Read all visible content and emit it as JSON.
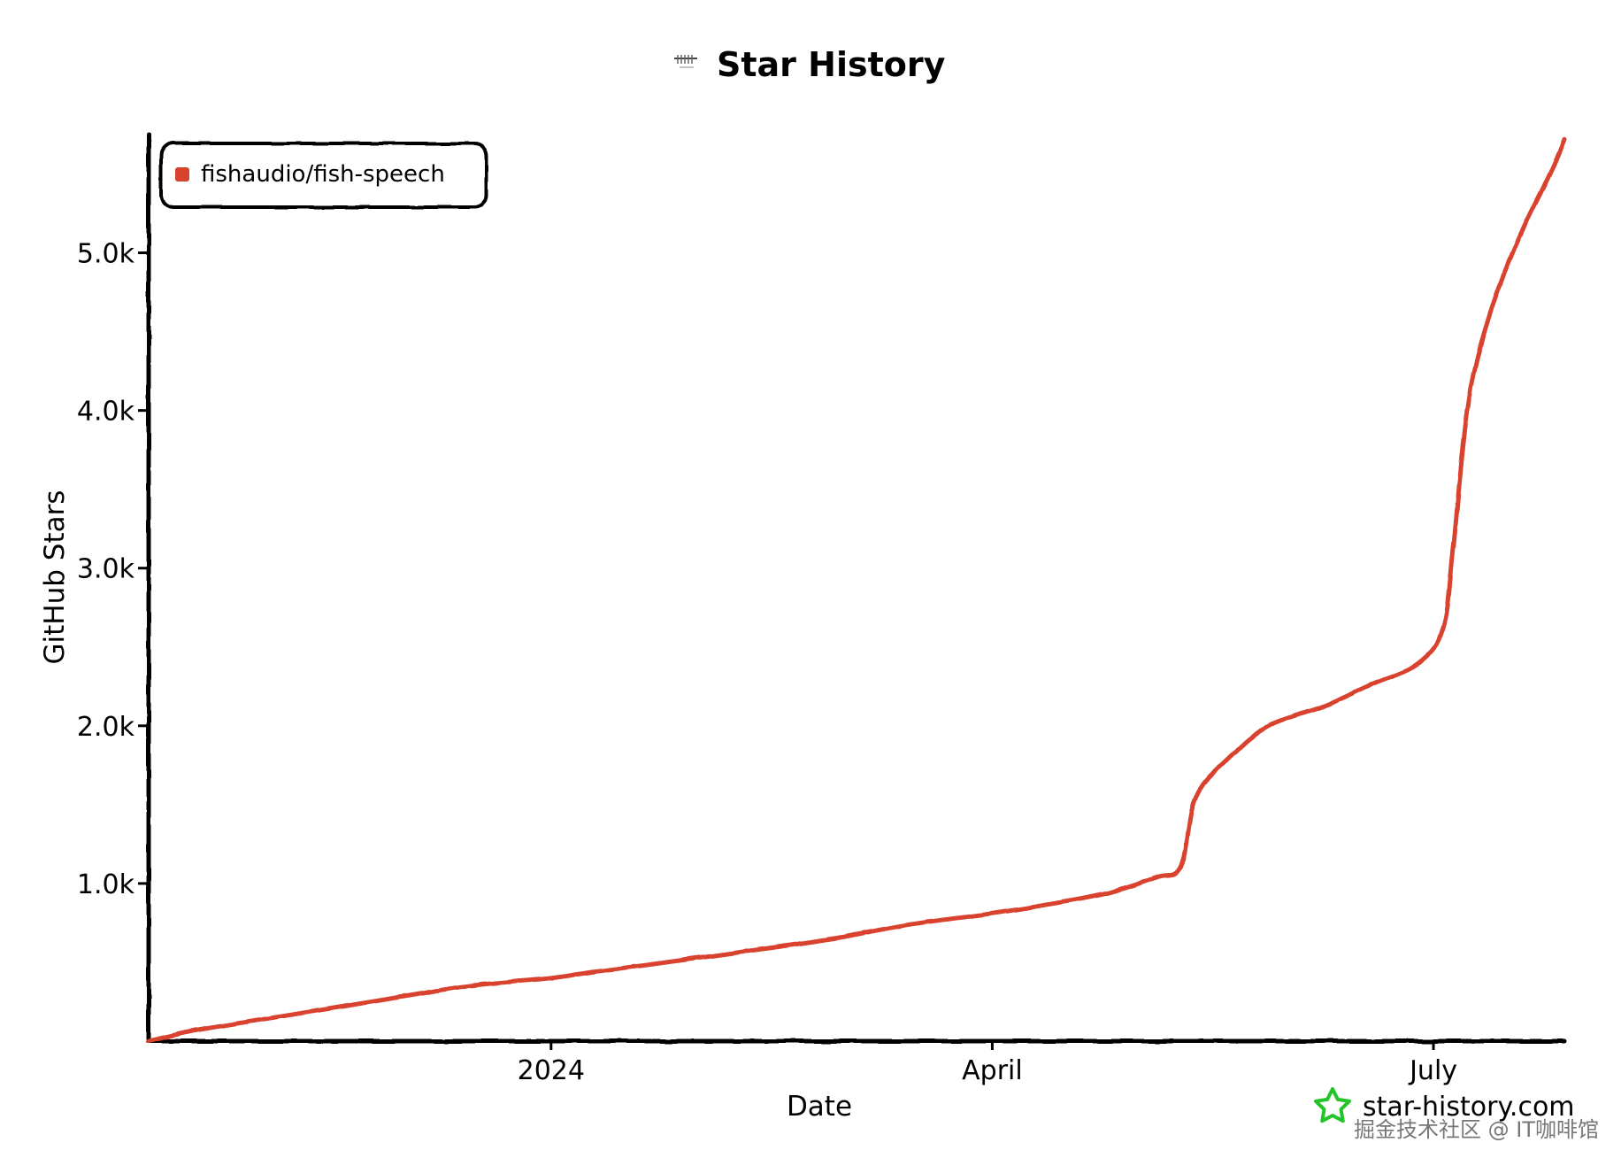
{
  "header": {
    "title": "Star History",
    "logo_icon": "fish-audio-logo"
  },
  "legend": {
    "label": "fishaudio/fish-speech",
    "color": "#d8432e",
    "placement": "top-left"
  },
  "footer": {
    "brand_text": "star-history.com",
    "brand_icon": "star-icon",
    "brand_color": "#22c427",
    "watermark": "掘金技术社区 @ IT咖啡馆"
  },
  "chart_data": {
    "type": "line",
    "title": "Star History",
    "xlabel": "Date",
    "ylabel": "GitHub Stars",
    "x_ticks": [
      {
        "date": "2024-01-01",
        "label": "2024"
      },
      {
        "date": "2024-04-01",
        "label": "April"
      },
      {
        "date": "2024-07-01",
        "label": "July"
      }
    ],
    "y_ticks": [
      {
        "value": 1000,
        "label": "1.0k"
      },
      {
        "value": 2000,
        "label": "2.0k"
      },
      {
        "value": 3000,
        "label": "3.0k"
      },
      {
        "value": 4000,
        "label": "4.0k"
      },
      {
        "value": 5000,
        "label": "5.0k"
      }
    ],
    "xlim": [
      "2023-10-10",
      "2024-07-28"
    ],
    "ylim": [
      0,
      5750
    ],
    "grid": false,
    "series": [
      {
        "name": "fishaudio/fish-speech",
        "color": "#d8432e",
        "points": [
          [
            "2023-10-10",
            0
          ],
          [
            "2023-10-20",
            70
          ],
          [
            "2023-11-01",
            130
          ],
          [
            "2023-11-15",
            200
          ],
          [
            "2023-12-01",
            280
          ],
          [
            "2023-12-15",
            350
          ],
          [
            "2024-01-01",
            400
          ],
          [
            "2024-01-10",
            440
          ],
          [
            "2024-01-20",
            480
          ],
          [
            "2024-02-01",
            530
          ],
          [
            "2024-02-15",
            590
          ],
          [
            "2024-03-01",
            660
          ],
          [
            "2024-03-15",
            740
          ],
          [
            "2024-04-01",
            810
          ],
          [
            "2024-04-15",
            880
          ],
          [
            "2024-04-25",
            940
          ],
          [
            "2024-05-05",
            1040
          ],
          [
            "2024-05-10",
            1110
          ],
          [
            "2024-05-13",
            1550
          ],
          [
            "2024-05-20",
            1800
          ],
          [
            "2024-05-28",
            2000
          ],
          [
            "2024-06-08",
            2120
          ],
          [
            "2024-06-18",
            2260
          ],
          [
            "2024-06-28",
            2400
          ],
          [
            "2024-07-03",
            2620
          ],
          [
            "2024-07-05",
            3100
          ],
          [
            "2024-07-08",
            4000
          ],
          [
            "2024-07-12",
            4550
          ],
          [
            "2024-07-18",
            5050
          ],
          [
            "2024-07-25",
            5500
          ],
          [
            "2024-07-28",
            5720
          ]
        ]
      }
    ]
  }
}
